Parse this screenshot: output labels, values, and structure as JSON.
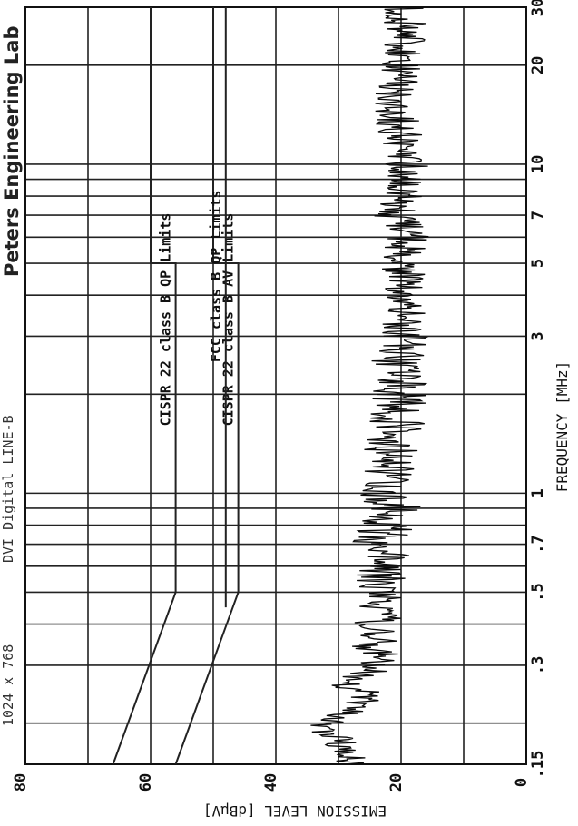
{
  "header": {
    "resolution": "1024 x 768",
    "test_name": "DVI Digital LINE-B",
    "lab_name": "Peters Engineering Lab"
  },
  "chart_data": {
    "type": "line",
    "title": "",
    "xlabel": "FREQUENCY [MHz]",
    "ylabel": "EMISSION LEVEL [dBµV]",
    "x_scale": "log",
    "xlim": [
      0.15,
      30
    ],
    "ylim": [
      0,
      80
    ],
    "grid": true,
    "x_ticks": [
      {
        "value": 0.15,
        "label": ".15"
      },
      {
        "value": 0.3,
        "label": ".3"
      },
      {
        "value": 0.5,
        "label": ".5"
      },
      {
        "value": 0.7,
        "label": ".7"
      },
      {
        "value": 1,
        "label": "1"
      },
      {
        "value": 3,
        "label": "3"
      },
      {
        "value": 5,
        "label": "5"
      },
      {
        "value": 7,
        "label": "7"
      },
      {
        "value": 10,
        "label": "10"
      },
      {
        "value": 20,
        "label": "20"
      },
      {
        "value": 30,
        "label": "30"
      }
    ],
    "y_ticks": [
      {
        "value": 0,
        "label": "0"
      },
      {
        "value": 20,
        "label": "20"
      },
      {
        "value": 40,
        "label": "40"
      },
      {
        "value": 60,
        "label": "60"
      },
      {
        "value": 80,
        "label": "80"
      }
    ],
    "limit_series": [
      {
        "name": "CISPR 22 class B QP Limits",
        "points": [
          [
            0.15,
            66
          ],
          [
            0.5,
            56
          ],
          [
            5,
            56
          ],
          [
            5,
            60
          ],
          [
            30,
            60
          ]
        ],
        "label_pos": [
          1.6,
          56
        ]
      },
      {
        "name": "CISPR 22 class B AV Limits",
        "points": [
          [
            0.15,
            56
          ],
          [
            0.5,
            46
          ],
          [
            5,
            46
          ],
          [
            5,
            50
          ],
          [
            30,
            50
          ]
        ],
        "label_pos": [
          1.6,
          46
        ]
      },
      {
        "name": "FCC class B QP Limits",
        "points": [
          [
            0.45,
            48
          ],
          [
            30,
            48
          ]
        ],
        "label_pos": [
          2.5,
          48
        ]
      }
    ],
    "series": [
      {
        "x": [
          0.15,
          0.16,
          0.17,
          0.18,
          0.19,
          0.2,
          0.21,
          0.22,
          0.23,
          0.24,
          0.25,
          0.26,
          0.28,
          0.3,
          0.32,
          0.34,
          0.36,
          0.38,
          0.4,
          0.42,
          0.45,
          0.48,
          0.5,
          0.55,
          0.6,
          0.65,
          0.7,
          0.8,
          0.9,
          1,
          1.2,
          1.5,
          2,
          2.5,
          3,
          4,
          5,
          6,
          7,
          8,
          10,
          12,
          15,
          20,
          25,
          30
        ],
        "values": [
          27,
          28,
          30,
          29,
          33,
          31,
          30,
          28,
          26,
          27,
          25,
          30,
          26,
          24,
          22,
          26,
          23,
          24,
          26,
          21,
          24,
          22,
          25,
          23,
          22,
          23,
          24,
          22,
          21,
          23,
          22,
          21,
          20,
          21,
          20,
          19,
          20,
          19,
          21,
          20,
          19,
          20,
          21,
          20,
          19,
          20
        ]
      }
    ]
  }
}
